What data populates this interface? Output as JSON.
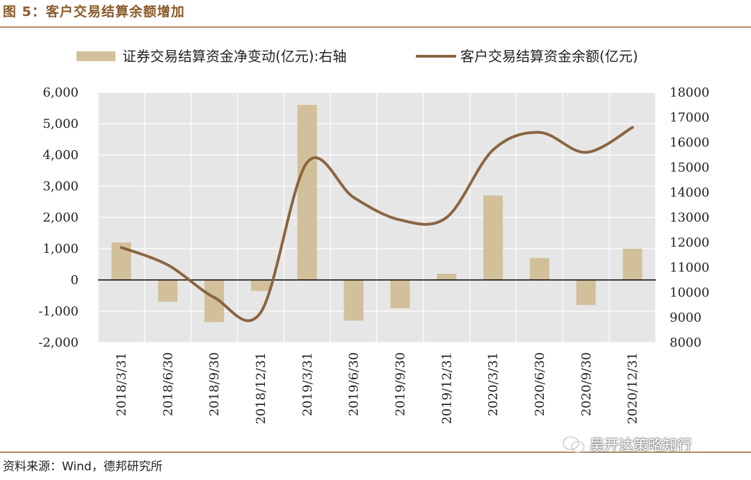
{
  "figure": {
    "title": "图 5：客户交易结算余额增加",
    "source": "资料来源：Wind，德邦研究所",
    "watermark": "吴开达策略知行"
  },
  "colors": {
    "bar": "#d2c09a",
    "line": "#8a6540",
    "plot_bg": "#e6e6e6",
    "grid": "#ffffff",
    "rule": "#b28a63",
    "title": "#8b5a2b"
  },
  "chart_data": {
    "type": "bar+line",
    "categories": [
      "2018/3/31",
      "2018/6/30",
      "2018/9/30",
      "2018/12/31",
      "2019/3/31",
      "2019/6/30",
      "2019/9/30",
      "2019/12/31",
      "2020/3/31",
      "2020/6/30",
      "2020/9/30",
      "2020/12/31"
    ],
    "series": [
      {
        "name": "证券交易结算资金净变动(亿元):右轴",
        "type": "bar",
        "axis": "left",
        "values": [
          1200,
          -700,
          -1350,
          -350,
          5600,
          -1300,
          -900,
          200,
          2700,
          700,
          -800,
          1000
        ]
      },
      {
        "name": "客户交易结算资金余额(亿元)",
        "type": "line",
        "axis": "right",
        "values": [
          11800,
          11100,
          9800,
          9200,
          15200,
          13800,
          12900,
          13000,
          15700,
          16400,
          15600,
          16600
        ]
      }
    ],
    "y_left": {
      "min": -2000,
      "max": 6000,
      "step": 1000,
      "ticks": [
        "-2,000",
        "-1,000",
        "0",
        "1,000",
        "2,000",
        "3,000",
        "4,000",
        "5,000",
        "6,000"
      ]
    },
    "y_right": {
      "min": 8000,
      "max": 18000,
      "step": 1000,
      "ticks": [
        "8000",
        "9000",
        "10000",
        "11000",
        "12000",
        "13000",
        "14000",
        "15000",
        "16000",
        "17000",
        "18000"
      ]
    },
    "grid": true,
    "legend_position": "top"
  }
}
